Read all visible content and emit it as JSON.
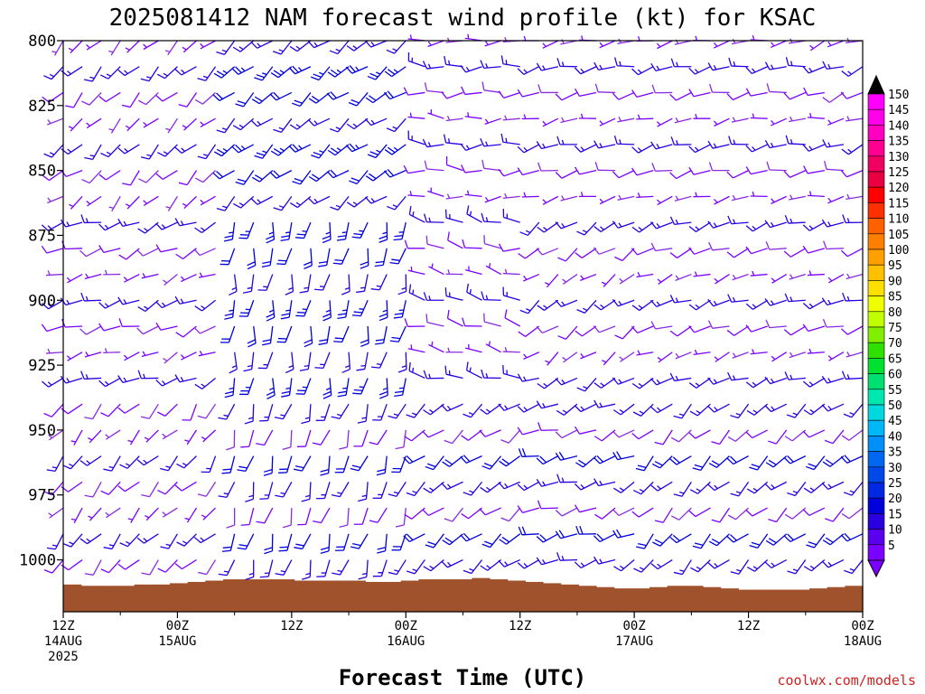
{
  "chart_data": {
    "type": "wind-barb-profile",
    "title": "2025081412 NAM forecast wind profile (kt) for KSAC",
    "xlabel": "Forecast Time (UTC)",
    "credit": "coolwx.com/models",
    "y_axis": {
      "quantity": "pressure (hPa)",
      "inverted": true,
      "range": [
        800,
        1020
      ],
      "ticks": [
        800,
        825,
        850,
        875,
        900,
        925,
        950,
        975,
        1000
      ],
      "tick_labels": [
        "800",
        "825",
        "850",
        "875",
        "900",
        "925",
        "950",
        "975",
        "1000"
      ]
    },
    "x_axis": {
      "range_hours": [
        0,
        84
      ],
      "ticks": [
        {
          "hour": 0,
          "time": "12Z",
          "date": "14AUG",
          "year": "2025"
        },
        {
          "hour": 12,
          "time": "00Z",
          "date": "15AUG",
          "year": ""
        },
        {
          "hour": 24,
          "time": "12Z",
          "date": "",
          "year": ""
        },
        {
          "hour": 36,
          "time": "00Z",
          "date": "16AUG",
          "year": ""
        },
        {
          "hour": 48,
          "time": "12Z",
          "date": "",
          "year": ""
        },
        {
          "hour": 60,
          "time": "00Z",
          "date": "17AUG",
          "year": ""
        },
        {
          "hour": 72,
          "time": "12Z",
          "date": "",
          "year": ""
        },
        {
          "hour": 84,
          "time": "00Z",
          "date": "18AUG",
          "year": ""
        }
      ]
    },
    "colorbar": {
      "labels": [
        "5",
        "10",
        "15",
        "20",
        "25",
        "30",
        "35",
        "40",
        "45",
        "50",
        "55",
        "60",
        "65",
        "70",
        "75",
        "80",
        "85",
        "90",
        "95",
        "100",
        "105",
        "110",
        "115",
        "120",
        "125",
        "130",
        "135",
        "140",
        "145",
        "150"
      ],
      "colors": [
        "#7a00ff",
        "#5a00ee",
        "#2a00e0",
        "#0000dd",
        "#0028e0",
        "#0048e8",
        "#0068f0",
        "#0090f8",
        "#00b8f8",
        "#00d8e0",
        "#00e8b0",
        "#00e070",
        "#00e030",
        "#30e000",
        "#80f000",
        "#c0ff00",
        "#f0ff00",
        "#ffe000",
        "#ffc000",
        "#ffa000",
        "#ff8000",
        "#ff6000",
        "#ff3000",
        "#ff0000",
        "#e80040",
        "#f00060",
        "#ff0090",
        "#ff00c0",
        "#ff00e8",
        "#ff00ff"
      ]
    },
    "terrain": {
      "color": "#a0522d",
      "surface_pressure_hpa": [
        1009.5,
        1010.0,
        1010.0,
        1010.0,
        1009.5,
        1009.5,
        1009.0,
        1008.5,
        1008.0,
        1007.5,
        1007.5,
        1007.5,
        1007.5,
        1008.0,
        1008.0,
        1008.0,
        1008.0,
        1008.5,
        1008.5,
        1008.0,
        1007.5,
        1007.5,
        1007.5,
        1007.0,
        1007.5,
        1008.0,
        1008.5,
        1009.0,
        1009.5,
        1010.0,
        1010.5,
        1011.0,
        1011.0,
        1010.5,
        1010.0,
        1010.0,
        1010.5,
        1011.0,
        1011.5,
        1011.5,
        1011.5,
        1011.5,
        1011.0,
        1010.5,
        1010.0
      ]
    },
    "wind_profile": {
      "time_step_hours": 2,
      "pressure_levels_hpa": [
        800,
        810,
        820,
        830,
        840,
        850,
        860,
        870,
        880,
        890,
        900,
        910,
        920,
        930,
        940,
        950,
        960,
        970,
        980,
        990,
        1000,
        1010
      ],
      "barb_colors": [
        "#8a2be2",
        "#7a00ff",
        "#2a00e0",
        "#0000dd"
      ],
      "cycle_ranges": [
        {
          "hours": [
            0,
            16
          ],
          "low_dir": 220,
          "mid_dir": 250,
          "high_dir": 230,
          "low_speed": 10,
          "mid_speed": 10
        },
        {
          "hours": [
            16,
            36
          ],
          "low_dir": 200,
          "mid_dir": 190,
          "high_dir": 230,
          "low_speed": 15,
          "mid_speed": 20
        },
        {
          "hours": [
            36,
            48
          ],
          "low_dir": 230,
          "mid_dir": 280,
          "high_dir": 270,
          "low_speed": 15,
          "mid_speed": 10
        },
        {
          "hours": [
            48,
            60
          ],
          "low_dir": 250,
          "mid_dir": 240,
          "high_dir": 260,
          "low_speed": 15,
          "mid_speed": 10
        },
        {
          "hours": [
            60,
            84
          ],
          "low_dir": 230,
          "mid_dir": 250,
          "high_dir": 255,
          "low_speed": 15,
          "mid_speed": 10
        }
      ]
    }
  }
}
